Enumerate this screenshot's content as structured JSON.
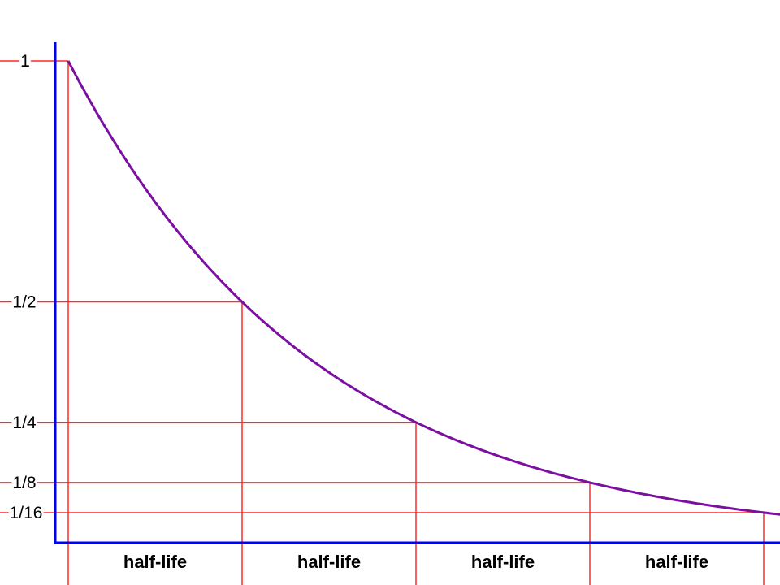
{
  "chart_data": {
    "type": "line",
    "title": "",
    "xlabel": "",
    "ylabel": "",
    "x_unit": "half-lives",
    "xlim": [
      0,
      4.1
    ],
    "ylim": [
      0,
      1.06
    ],
    "grid": false,
    "series": [
      {
        "x": [
          0,
          0.25,
          0.5,
          0.75,
          1,
          1.25,
          1.5,
          1.75,
          2,
          2.25,
          2.5,
          2.75,
          3,
          3.25,
          3.5,
          3.75,
          4,
          4.1
        ],
        "y": [
          1,
          0.841,
          0.707,
          0.595,
          0.5,
          0.42,
          0.354,
          0.297,
          0.25,
          0.21,
          0.177,
          0.149,
          0.125,
          0.105,
          0.088,
          0.074,
          0.0625,
          0.058
        ]
      }
    ],
    "y_ticks": [
      {
        "value": 1,
        "label": "1"
      },
      {
        "value": 0.5,
        "label": "1/2"
      },
      {
        "value": 0.25,
        "label": "1/4"
      },
      {
        "value": 0.125,
        "label": "1/8"
      },
      {
        "value": 0.0625,
        "label": "1/16"
      }
    ],
    "reference_lines": [
      {
        "x": 0,
        "y": 1
      },
      {
        "x": 1,
        "y": 0.5
      },
      {
        "x": 2,
        "y": 0.25
      },
      {
        "x": 3,
        "y": 0.125
      },
      {
        "x": 4,
        "y": 0.0625
      }
    ],
    "intervals": [
      {
        "from": 0,
        "to": 1,
        "label": "half-life"
      },
      {
        "from": 1,
        "to": 2,
        "label": "half-life"
      },
      {
        "from": 2,
        "to": 3,
        "label": "half-life"
      },
      {
        "from": 3,
        "to": 4,
        "label": "half-life"
      }
    ],
    "colors": {
      "curve": "#7a0fa0",
      "reference": "#ff2a2a",
      "axis": "#0000ff"
    }
  }
}
